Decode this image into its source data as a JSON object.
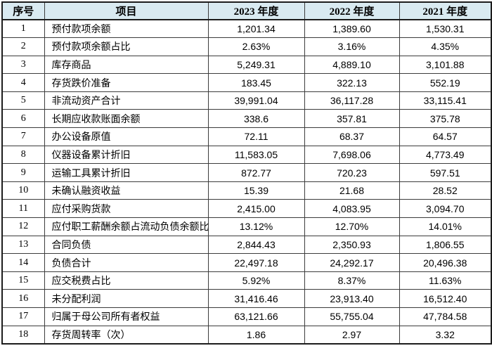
{
  "colors": {
    "header_bg": "#d9eaf1",
    "border_outer": "#1c1c1c",
    "border_inner": "#3c3c3c",
    "text": "#000000",
    "row_bg": "#ffffff"
  },
  "table": {
    "columns": [
      {
        "key": "index",
        "label": "序号"
      },
      {
        "key": "item",
        "label": "项目"
      },
      {
        "key": "y2023",
        "label": "2023 年度"
      },
      {
        "key": "y2022",
        "label": "2022 年度"
      },
      {
        "key": "y2021",
        "label": "2021 年度"
      }
    ],
    "rows": [
      {
        "index": "1",
        "item": "预付款项余额",
        "y2023": "1,201.34",
        "y2022": "1,389.60",
        "y2021": "1,530.31"
      },
      {
        "index": "2",
        "item": "预付款项余额占比",
        "y2023": "2.63%",
        "y2022": "3.16%",
        "y2021": "4.35%"
      },
      {
        "index": "3",
        "item": "库存商品",
        "y2023": "5,249.31",
        "y2022": "4,889.10",
        "y2021": "3,101.88"
      },
      {
        "index": "4",
        "item": "存货跌价准备",
        "y2023": "183.45",
        "y2022": "322.13",
        "y2021": "552.19"
      },
      {
        "index": "5",
        "item": "非流动资产合计",
        "y2023": "39,991.04",
        "y2022": "36,117.28",
        "y2021": "33,115.41"
      },
      {
        "index": "6",
        "item": "长期应收款账面余额",
        "y2023": "338.6",
        "y2022": "357.81",
        "y2021": "375.78"
      },
      {
        "index": "7",
        "item": "办公设备原值",
        "y2023": "72.11",
        "y2022": "68.37",
        "y2021": "64.57"
      },
      {
        "index": "8",
        "item": "仪器设备累计折旧",
        "y2023": "11,583.05",
        "y2022": "7,698.06",
        "y2021": "4,773.49"
      },
      {
        "index": "9",
        "item": "运输工具累计折旧",
        "y2023": "872.77",
        "y2022": "720.23",
        "y2021": "597.51"
      },
      {
        "index": "10",
        "item": "未确认融资收益",
        "y2023": "15.39",
        "y2022": "21.68",
        "y2021": "28.52"
      },
      {
        "index": "11",
        "item": "应付采购货款",
        "y2023": "2,415.00",
        "y2022": "4,083.95",
        "y2021": "3,094.70"
      },
      {
        "index": "12",
        "item": "应付职工薪酬余额占流动负债余额比",
        "y2023": "13.12%",
        "y2022": "12.70%",
        "y2021": "14.01%"
      },
      {
        "index": "13",
        "item": "合同负债",
        "y2023": "2,844.43",
        "y2022": "2,350.93",
        "y2021": "1,806.55"
      },
      {
        "index": "14",
        "item": "负债合计",
        "y2023": "22,497.18",
        "y2022": "24,292.17",
        "y2021": "20,496.38"
      },
      {
        "index": "15",
        "item": "应交税费占比",
        "y2023": "5.92%",
        "y2022": "8.37%",
        "y2021": "11.63%"
      },
      {
        "index": "16",
        "item": "未分配利润",
        "y2023": "31,416.46",
        "y2022": "23,913.40",
        "y2021": "16,512.40"
      },
      {
        "index": "17",
        "item": "归属于母公司所有者权益",
        "y2023": "63,121.66",
        "y2022": "55,755.04",
        "y2021": "47,784.58"
      },
      {
        "index": "18",
        "item": "存货周转率（次）",
        "y2023": "1.86",
        "y2022": "2.97",
        "y2021": "3.32"
      }
    ]
  }
}
